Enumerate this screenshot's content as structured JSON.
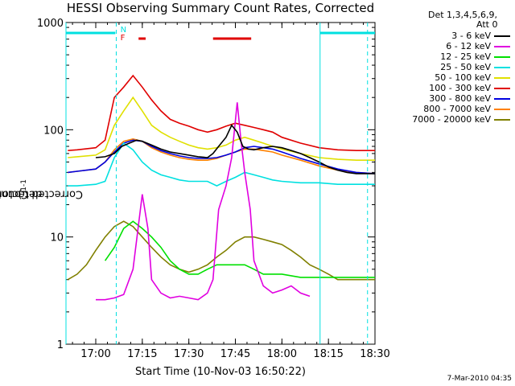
{
  "chart_data": {
    "type": "line",
    "title": "HESSI Observing Summary Count Rates, Corrected",
    "xlabel": "Start Time (10-Nov-03 16:50:22)",
    "ylabel_main": "Corrected Count Rate (s",
    "ylabel_sup1": "-1",
    "ylabel_mid": " detector",
    "ylabel_sup2": "-1",
    "ylabel_end": ")",
    "y_scale": "log",
    "ylim": [
      1,
      1000
    ],
    "xlim": [
      16.84,
      18.5
    ],
    "x_ticks": [
      {
        "value": 17.0,
        "label": "17:00"
      },
      {
        "value": 17.25,
        "label": "17:15"
      },
      {
        "value": 17.5,
        "label": "17:30"
      },
      {
        "value": 17.75,
        "label": "17:45"
      },
      {
        "value": 18.0,
        "label": "18:00"
      },
      {
        "value": 18.25,
        "label": "18:15"
      },
      {
        "value": 18.5,
        "label": "18:30"
      }
    ],
    "y_ticks": [
      {
        "value": 1,
        "label": "1"
      },
      {
        "value": 10,
        "label": "10"
      },
      {
        "value": 100,
        "label": "100"
      },
      {
        "value": 1000,
        "label": "1000"
      }
    ],
    "detectors_label": "Det 1,3,4,5,6,9,",
    "attenuator_label": "Att 0",
    "footer_date": "7-Mar-2010 04:35",
    "series": [
      {
        "name": "3 - 6 keV",
        "color": "#000000",
        "x": [
          17.0,
          17.05,
          17.1,
          17.14,
          17.18,
          17.22,
          17.25,
          17.3,
          17.35,
          17.4,
          17.45,
          17.5,
          17.55,
          17.6,
          17.63,
          17.66,
          17.7,
          17.73,
          17.76,
          17.79,
          17.82,
          17.85,
          17.9,
          17.95,
          18.0,
          18.05,
          18.1,
          18.15,
          18.2,
          18.25,
          18.3,
          18.35,
          18.4,
          18.45,
          18.5
        ],
        "y": [
          55,
          56,
          60,
          70,
          75,
          80,
          78,
          72,
          66,
          62,
          60,
          58,
          56,
          55,
          60,
          70,
          85,
          110,
          95,
          70,
          66,
          65,
          68,
          70,
          68,
          64,
          60,
          55,
          50,
          45,
          42,
          40,
          39,
          39,
          39
        ]
      },
      {
        "name": "6 - 12 keV",
        "color": "#e000e0",
        "x": [
          17.0,
          17.05,
          17.1,
          17.15,
          17.2,
          17.25,
          17.28,
          17.3,
          17.35,
          17.4,
          17.45,
          17.5,
          17.55,
          17.6,
          17.63,
          17.66,
          17.7,
          17.73,
          17.76,
          17.78,
          17.8,
          17.83,
          17.85,
          17.9,
          17.95,
          18.0,
          18.05,
          18.1,
          18.15
        ],
        "y": [
          2.6,
          2.6,
          2.7,
          2.9,
          5,
          25,
          12,
          4,
          3,
          2.7,
          2.8,
          2.7,
          2.6,
          3,
          4,
          18,
          30,
          55,
          180,
          80,
          40,
          18,
          6,
          3.5,
          3,
          3.2,
          3.5,
          3,
          2.8
        ]
      },
      {
        "name": "12 - 25 keV",
        "color": "#00e000",
        "x": [
          17.05,
          17.1,
          17.15,
          17.2,
          17.25,
          17.3,
          17.35,
          17.4,
          17.45,
          17.5,
          17.55,
          17.6,
          17.65,
          17.7,
          17.75,
          17.8,
          17.85,
          17.9,
          17.95,
          18.0,
          18.1,
          18.2,
          18.3,
          18.4,
          18.5
        ],
        "y": [
          6,
          8,
          12,
          14,
          12,
          10,
          8,
          6,
          5,
          4.5,
          4.5,
          5,
          5.5,
          5.5,
          5.5,
          5.5,
          5,
          4.5,
          4.5,
          4.5,
          4.2,
          4.2,
          4.2,
          4.2,
          4.2
        ]
      },
      {
        "name": "25 - 50 keV",
        "color": "#00e0e0",
        "x": [
          16.85,
          16.9,
          17.0,
          17.05,
          17.1,
          17.15,
          17.2,
          17.25,
          17.3,
          17.35,
          17.4,
          17.45,
          17.5,
          17.55,
          17.6,
          17.65,
          17.7,
          17.75,
          17.8,
          17.85,
          17.9,
          17.95,
          18.0,
          18.1,
          18.2,
          18.3,
          18.4,
          18.5
        ],
        "y": [
          30,
          30,
          31,
          33,
          55,
          75,
          65,
          50,
          42,
          38,
          36,
          34,
          33,
          33,
          33,
          30,
          33,
          36,
          40,
          38,
          36,
          34,
          33,
          32,
          32,
          31,
          31,
          31
        ]
      },
      {
        "name": "50 - 100 keV",
        "color": "#e0e000",
        "x": [
          16.85,
          16.9,
          17.0,
          17.05,
          17.1,
          17.15,
          17.2,
          17.25,
          17.3,
          17.35,
          17.4,
          17.45,
          17.5,
          17.55,
          17.6,
          17.65,
          17.7,
          17.75,
          17.8,
          17.85,
          17.9,
          17.95,
          18.0,
          18.1,
          18.2,
          18.3,
          18.4,
          18.5
        ],
        "y": [
          55,
          56,
          58,
          65,
          110,
          150,
          200,
          150,
          110,
          95,
          85,
          78,
          72,
          68,
          66,
          68,
          72,
          80,
          85,
          80,
          75,
          70,
          66,
          60,
          55,
          53,
          52,
          52
        ]
      },
      {
        "name": "100 - 300 keV",
        "color": "#e00000",
        "x": [
          16.85,
          16.9,
          17.0,
          17.05,
          17.1,
          17.15,
          17.2,
          17.25,
          17.3,
          17.35,
          17.4,
          17.45,
          17.5,
          17.55,
          17.6,
          17.65,
          17.7,
          17.75,
          17.8,
          17.85,
          17.9,
          17.95,
          18.0,
          18.1,
          18.2,
          18.3,
          18.4,
          18.5
        ],
        "y": [
          64,
          65,
          68,
          80,
          200,
          250,
          320,
          250,
          190,
          150,
          125,
          115,
          108,
          100,
          95,
          100,
          108,
          115,
          110,
          105,
          100,
          95,
          85,
          75,
          68,
          65,
          64,
          64
        ]
      },
      {
        "name": "300 - 800 keV",
        "color": "#0000e0",
        "x": [
          16.85,
          16.9,
          17.0,
          17.05,
          17.1,
          17.15,
          17.2,
          17.25,
          17.3,
          17.35,
          17.4,
          17.45,
          17.5,
          17.55,
          17.6,
          17.65,
          17.7,
          17.75,
          17.8,
          17.85,
          17.9,
          17.95,
          18.0,
          18.1,
          18.2,
          18.3,
          18.4,
          18.5
        ],
        "y": [
          40,
          41,
          43,
          50,
          62,
          75,
          80,
          78,
          70,
          64,
          60,
          57,
          55,
          54,
          54,
          55,
          58,
          62,
          68,
          70,
          68,
          66,
          62,
          54,
          48,
          43,
          40,
          39
        ]
      },
      {
        "name": "800 - 7000 keV",
        "color": "#ff8000",
        "x": [
          16.85,
          16.9,
          17.0,
          17.05,
          17.1,
          17.15,
          17.2,
          17.25,
          17.3,
          17.35,
          17.4,
          17.45,
          17.5,
          17.55,
          17.6,
          17.65,
          17.7,
          17.75,
          17.8,
          17.85,
          17.9,
          17.95,
          18.0,
          18.1,
          18.2,
          18.3,
          18.4,
          18.5
        ],
        "y": [
          40,
          41,
          43,
          50,
          65,
          78,
          82,
          78,
          68,
          62,
          58,
          55,
          53,
          52,
          52,
          54,
          58,
          62,
          66,
          66,
          64,
          62,
          58,
          52,
          46,
          42,
          40,
          39
        ]
      },
      {
        "name": "7000 - 20000 keV",
        "color": "#808000",
        "x": [
          16.85,
          16.9,
          16.95,
          17.0,
          17.05,
          17.1,
          17.15,
          17.2,
          17.25,
          17.3,
          17.35,
          17.4,
          17.45,
          17.5,
          17.55,
          17.6,
          17.65,
          17.7,
          17.75,
          17.8,
          17.85,
          17.9,
          17.95,
          18.0,
          18.05,
          18.1,
          18.15,
          18.2,
          18.25,
          18.3,
          18.35,
          18.4,
          18.45,
          18.5
        ],
        "y": [
          4,
          4.5,
          5.5,
          7.5,
          10,
          12.5,
          14,
          12.5,
          10,
          8,
          6.5,
          5.5,
          5,
          4.7,
          5,
          5.5,
          6.5,
          7.5,
          9,
          10,
          10,
          9.5,
          9,
          8.5,
          7.5,
          6.5,
          5.5,
          5,
          4.5,
          4,
          4,
          4,
          4,
          4
        ]
      }
    ],
    "markers": {
      "vertical_solid": [
        16.84,
        18.205
      ],
      "vertical_dashed": [
        17.11,
        18.46
      ],
      "cyan_bars": [
        [
          16.84,
          17.105
        ],
        [
          18.205,
          18.5
        ]
      ],
      "red_bars": [
        [
          17.23,
          17.268
        ],
        [
          17.63,
          17.835
        ]
      ],
      "n_label": "N",
      "f_label": "F",
      "n_label_x": 17.115,
      "f_label_x": 17.115
    }
  }
}
